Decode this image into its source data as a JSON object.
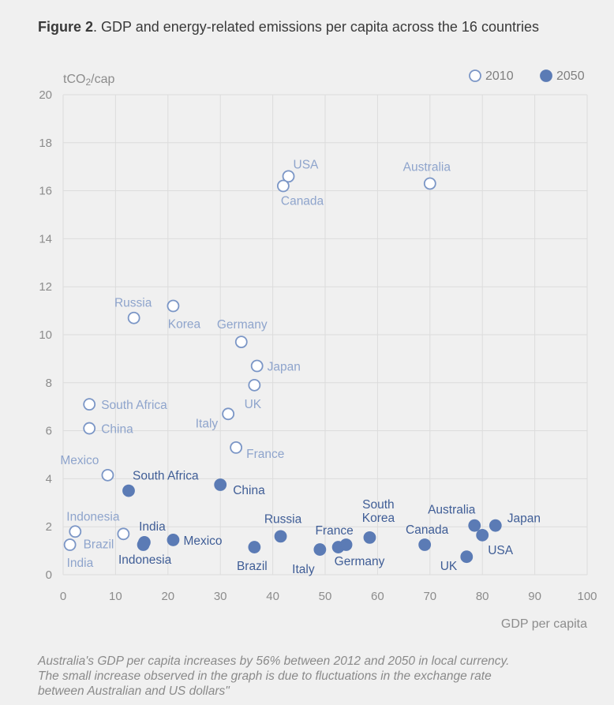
{
  "figure": {
    "label": "Figure 2",
    "title": ". GDP and energy-related emissions per capita across the 16 countries"
  },
  "caption": [
    "Australia's GDP per capita increases by 56% between 2012 and 2050 in local currency.",
    "The small increase observed in the graph is due to fluctuations in the exchange rate",
    "between Australian and US dollars\""
  ],
  "colors": {
    "open_marker": "#7b96c6",
    "filled_marker": "#5b7bb5",
    "open_label": "#8ea4cc",
    "filled_label": "#3f5d96",
    "axis_text": "#8c8c8c",
    "grid": "#dcdcdc"
  },
  "chart_data": {
    "type": "scatter",
    "xlabel": "GDP per capita",
    "ylabel": "tCO2/cap",
    "xlim": [
      0,
      100
    ],
    "ylim": [
      0,
      20
    ],
    "x_ticks": [
      "0",
      "10",
      "20",
      "30",
      "40",
      "50",
      "60",
      "70",
      "80",
      "90",
      "100"
    ],
    "y_ticks": [
      "0",
      "2",
      "4",
      "6",
      "8",
      "10",
      "12",
      "14",
      "16",
      "18",
      "20"
    ],
    "grid": true,
    "legend_position": "top-right",
    "series": [
      {
        "name": "2010",
        "marker": "open",
        "points": [
          {
            "label": "USA",
            "x": 43,
            "y": 16.6,
            "anchor": "start",
            "dx": 6,
            "dy": -10
          },
          {
            "label": "Canada",
            "x": 42,
            "y": 16.2,
            "anchor": "start",
            "dx": -3,
            "dy": 24
          },
          {
            "label": "Australia",
            "x": 70,
            "y": 16.3,
            "anchor": "middle",
            "dx": -4,
            "dy": -16
          },
          {
            "label": "Russia",
            "x": 13.5,
            "y": 10.7,
            "anchor": "middle",
            "dx": -1,
            "dy": -14
          },
          {
            "label": "Korea",
            "x": 21,
            "y": 11.2,
            "anchor": "middle",
            "dx": 14,
            "dy": 28
          },
          {
            "label": "Germany",
            "x": 34,
            "y": 9.7,
            "anchor": "middle",
            "dx": 1,
            "dy": -17
          },
          {
            "label": "Japan",
            "x": 37,
            "y": 8.7,
            "anchor": "start",
            "dx": 13,
            "dy": 6
          },
          {
            "label": "UK",
            "x": 36.5,
            "y": 7.9,
            "anchor": "middle",
            "dx": -2,
            "dy": 29
          },
          {
            "label": "South Africa",
            "x": 5,
            "y": 7.1,
            "anchor": "start",
            "dx": 15,
            "dy": 6
          },
          {
            "label": "Italy",
            "x": 31.5,
            "y": 6.7,
            "anchor": "end",
            "dx": -13,
            "dy": 17
          },
          {
            "label": "China",
            "x": 5,
            "y": 6.1,
            "anchor": "start",
            "dx": 15,
            "dy": 6
          },
          {
            "label": "France",
            "x": 33,
            "y": 5.3,
            "anchor": "start",
            "dx": 13,
            "dy": 13
          },
          {
            "label": "Mexico",
            "x": 8.5,
            "y": 4.15,
            "anchor": "end",
            "dx": -11,
            "dy": -14
          },
          {
            "label": "Indonesia",
            "x": 2.3,
            "y": 1.8,
            "anchor": "start",
            "dx": -11,
            "dy": -14
          },
          {
            "label": "Brazil",
            "x": 11.5,
            "y": 1.7,
            "anchor": "end",
            "dx": -12,
            "dy": 18
          },
          {
            "label": "India",
            "x": 1.3,
            "y": 1.25,
            "anchor": "start",
            "dx": -4,
            "dy": 28
          }
        ]
      },
      {
        "name": "2050",
        "marker": "filled",
        "points": [
          {
            "label": "South Africa",
            "x": 12.5,
            "y": 3.5,
            "anchor": "start",
            "dx": 5,
            "dy": -14
          },
          {
            "label": "China",
            "x": 30,
            "y": 3.75,
            "anchor": "start",
            "dx": 16,
            "dy": 12
          },
          {
            "label": "India",
            "x": 15.5,
            "y": 1.35,
            "anchor": "middle",
            "dx": 10,
            "dy": -15
          },
          {
            "label": "Indonesia",
            "x": 15.3,
            "y": 1.25,
            "anchor": "middle",
            "dx": 2,
            "dy": 24
          },
          {
            "label": "Mexico",
            "x": 21,
            "y": 1.45,
            "anchor": "start",
            "dx": 13,
            "dy": 6
          },
          {
            "label": "Brazil",
            "x": 36.5,
            "y": 1.15,
            "anchor": "middle",
            "dx": -3,
            "dy": 29
          },
          {
            "label": "Russia",
            "x": 41.5,
            "y": 1.6,
            "anchor": "middle",
            "dx": 3,
            "dy": -17
          },
          {
            "label": "Italy",
            "x": 49,
            "y": 1.05,
            "anchor": "middle",
            "dx": -21,
            "dy": 30
          },
          {
            "label": "France",
            "x": 52.5,
            "y": 1.15,
            "anchor": "middle",
            "dx": -5,
            "dy": -16
          },
          {
            "label": "Germany",
            "x": 54,
            "y": 1.25,
            "anchor": "middle",
            "dx": 17,
            "dy": 26
          },
          {
            "label": "South Korea",
            "x": 58.5,
            "y": 1.55,
            "anchor": "middle",
            "dx": 11,
            "dy": -37,
            "dy2": -20
          },
          {
            "label": "Canada",
            "x": 69,
            "y": 1.25,
            "anchor": "middle",
            "dx": 3,
            "dy": -14
          },
          {
            "label": "UK",
            "x": 77,
            "y": 0.75,
            "anchor": "end",
            "dx": -12,
            "dy": 17
          },
          {
            "label": "Australia",
            "x": 78.5,
            "y": 2.05,
            "anchor": "middle",
            "dx": -29,
            "dy": -15
          },
          {
            "label": "USA",
            "x": 80,
            "y": 1.65,
            "anchor": "start",
            "dx": 7,
            "dy": 24
          },
          {
            "label": "Japan",
            "x": 82.5,
            "y": 2.05,
            "anchor": "start",
            "dx": 15,
            "dy": -4
          }
        ]
      }
    ]
  }
}
